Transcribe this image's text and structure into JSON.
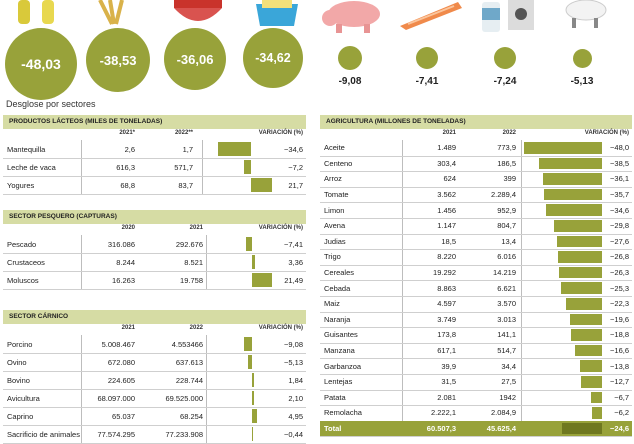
{
  "subtitle": "Desglose por sectores",
  "top_values": [
    "-48,03",
    "-38,53",
    "-36,06",
    "-34,62",
    "-9,08",
    "-7,41",
    "-7,24",
    "-5,13"
  ],
  "icons": [
    "oil-bottles-icon",
    "wheat-icon",
    "tomato-bowl-icon",
    "butter-icon",
    "pig-icon",
    "salmon-icon",
    "milk-icon",
    "sheep-icon"
  ],
  "colors": {
    "accent": "#98a23a",
    "header": "#d6dca4"
  },
  "chart_data": [
    {
      "type": "table",
      "title": "PRODUCTOS LÁCTEOS (MILES DE TONELADAS)",
      "columns": [
        "",
        "2021*",
        "2022**",
        "VARIACIÓN (%)"
      ],
      "rows": [
        {
          "label": "Mantequilla",
          "v1": "2,6",
          "v2": "1,7",
          "var": -34.6,
          "var_text": "−34,6"
        },
        {
          "label": "Leche de vaca",
          "v1": "616,3",
          "v2": "571,7",
          "var": -7.2,
          "var_text": "−7,2"
        },
        {
          "label": "Yogures",
          "v1": "68,8",
          "v2": "83,7",
          "var": 21.7,
          "var_text": "21,7"
        }
      ]
    },
    {
      "type": "table",
      "title": "SECTOR PESQUERO (CAPTURAS)",
      "columns": [
        "",
        "2020",
        "2021",
        "VARIACIÓN (%)"
      ],
      "rows": [
        {
          "label": "Pescado",
          "v1": "316.086",
          "v2": "292.676",
          "var": -7.41,
          "var_text": "−7,41"
        },
        {
          "label": "Crustaceos",
          "v1": "8.244",
          "v2": "8.521",
          "var": 3.36,
          "var_text": "3,36"
        },
        {
          "label": "Moluscos",
          "v1": "16.263",
          "v2": "19.758",
          "var": 21.49,
          "var_text": "21,49"
        }
      ]
    },
    {
      "type": "table",
      "title": "SECTOR CÁRNICO",
      "columns": [
        "",
        "2021",
        "2022",
        "VARIACIÓN (%)"
      ],
      "rows": [
        {
          "label": "Porcino",
          "v1": "5.008.467",
          "v2": "4.553466",
          "var": -9.08,
          "var_text": "−9,08"
        },
        {
          "label": "Ovino",
          "v1": "672.080",
          "v2": "637.613",
          "var": -5.13,
          "var_text": "−5,13"
        },
        {
          "label": "Bovino",
          "v1": "224.605",
          "v2": "228.744",
          "var": 1.84,
          "var_text": "1,84"
        },
        {
          "label": "Avicultura",
          "v1": "68.097.000",
          "v2": "69.525.000",
          "var": 2.1,
          "var_text": "2,10"
        },
        {
          "label": "Caprino",
          "v1": "65.037",
          "v2": "68.254",
          "var": 4.95,
          "var_text": "4,95"
        },
        {
          "label": "Sacrificio de animales",
          "v1": "77.574.295",
          "v2": "77.233.908",
          "var": -0.44,
          "var_text": "−0,44"
        }
      ]
    },
    {
      "type": "table",
      "title": "AGRICULTURA (MILLONES DE TONELADAS)",
      "columns": [
        "",
        "2021",
        "2022",
        "VARIACIÓN (%)"
      ],
      "rows": [
        {
          "label": "Aceite",
          "v1": "1.489",
          "v2": "773,9",
          "var": -48.0,
          "var_text": "−48,0"
        },
        {
          "label": "Centeno",
          "v1": "303,4",
          "v2": "186,5",
          "var": -38.5,
          "var_text": "−38,5"
        },
        {
          "label": "Arroz",
          "v1": "624",
          "v2": "399",
          "var": -36.1,
          "var_text": "−36,1"
        },
        {
          "label": "Tomate",
          "v1": "3.562",
          "v2": "2.289,4",
          "var": -35.7,
          "var_text": "−35,7"
        },
        {
          "label": "Limon",
          "v1": "1.456",
          "v2": "952,9",
          "var": -34.6,
          "var_text": "−34,6"
        },
        {
          "label": "Avena",
          "v1": "1.147",
          "v2": "804,7",
          "var": -29.8,
          "var_text": "−29,8"
        },
        {
          "label": "Judias",
          "v1": "18,5",
          "v2": "13,4",
          "var": -27.6,
          "var_text": "−27,6"
        },
        {
          "label": "Trigo",
          "v1": "8.220",
          "v2": "6.016",
          "var": -26.8,
          "var_text": "−26,8"
        },
        {
          "label": "Cereales",
          "v1": "19.292",
          "v2": "14.219",
          "var": -26.3,
          "var_text": "−26,3"
        },
        {
          "label": "Cebada",
          "v1": "8.863",
          "v2": "6.621",
          "var": -25.3,
          "var_text": "−25,3"
        },
        {
          "label": "Maiz",
          "v1": "4.597",
          "v2": "3.570",
          "var": -22.3,
          "var_text": "−22,3"
        },
        {
          "label": "Naranja",
          "v1": "3.749",
          "v2": "3.013",
          "var": -19.6,
          "var_text": "−19,6"
        },
        {
          "label": "Guisantes",
          "v1": "173,8",
          "v2": "141,1",
          "var": -18.8,
          "var_text": "−18,8"
        },
        {
          "label": "Manzana",
          "v1": "617,1",
          "v2": "514,7",
          "var": -16.6,
          "var_text": "−16,6"
        },
        {
          "label": "Garbanzoa",
          "v1": "39,9",
          "v2": "34,4",
          "var": -13.8,
          "var_text": "−13,8"
        },
        {
          "label": "Lentejas",
          "v1": "31,5",
          "v2": "27,5",
          "var": -12.7,
          "var_text": "−12,7"
        },
        {
          "label": "Patata",
          "v1": "2.081",
          "v2": "1942",
          "var": -6.7,
          "var_text": "−6,7"
        },
        {
          "label": "Remolacha",
          "v1": "2.222,1",
          "v2": "2.084,9",
          "var": -6.2,
          "var_text": "−6,2"
        }
      ],
      "total": {
        "label": "Total",
        "v1": "60.507,3",
        "v2": "45.625,4",
        "var": -24.6,
        "var_text": "−24,6"
      }
    }
  ]
}
